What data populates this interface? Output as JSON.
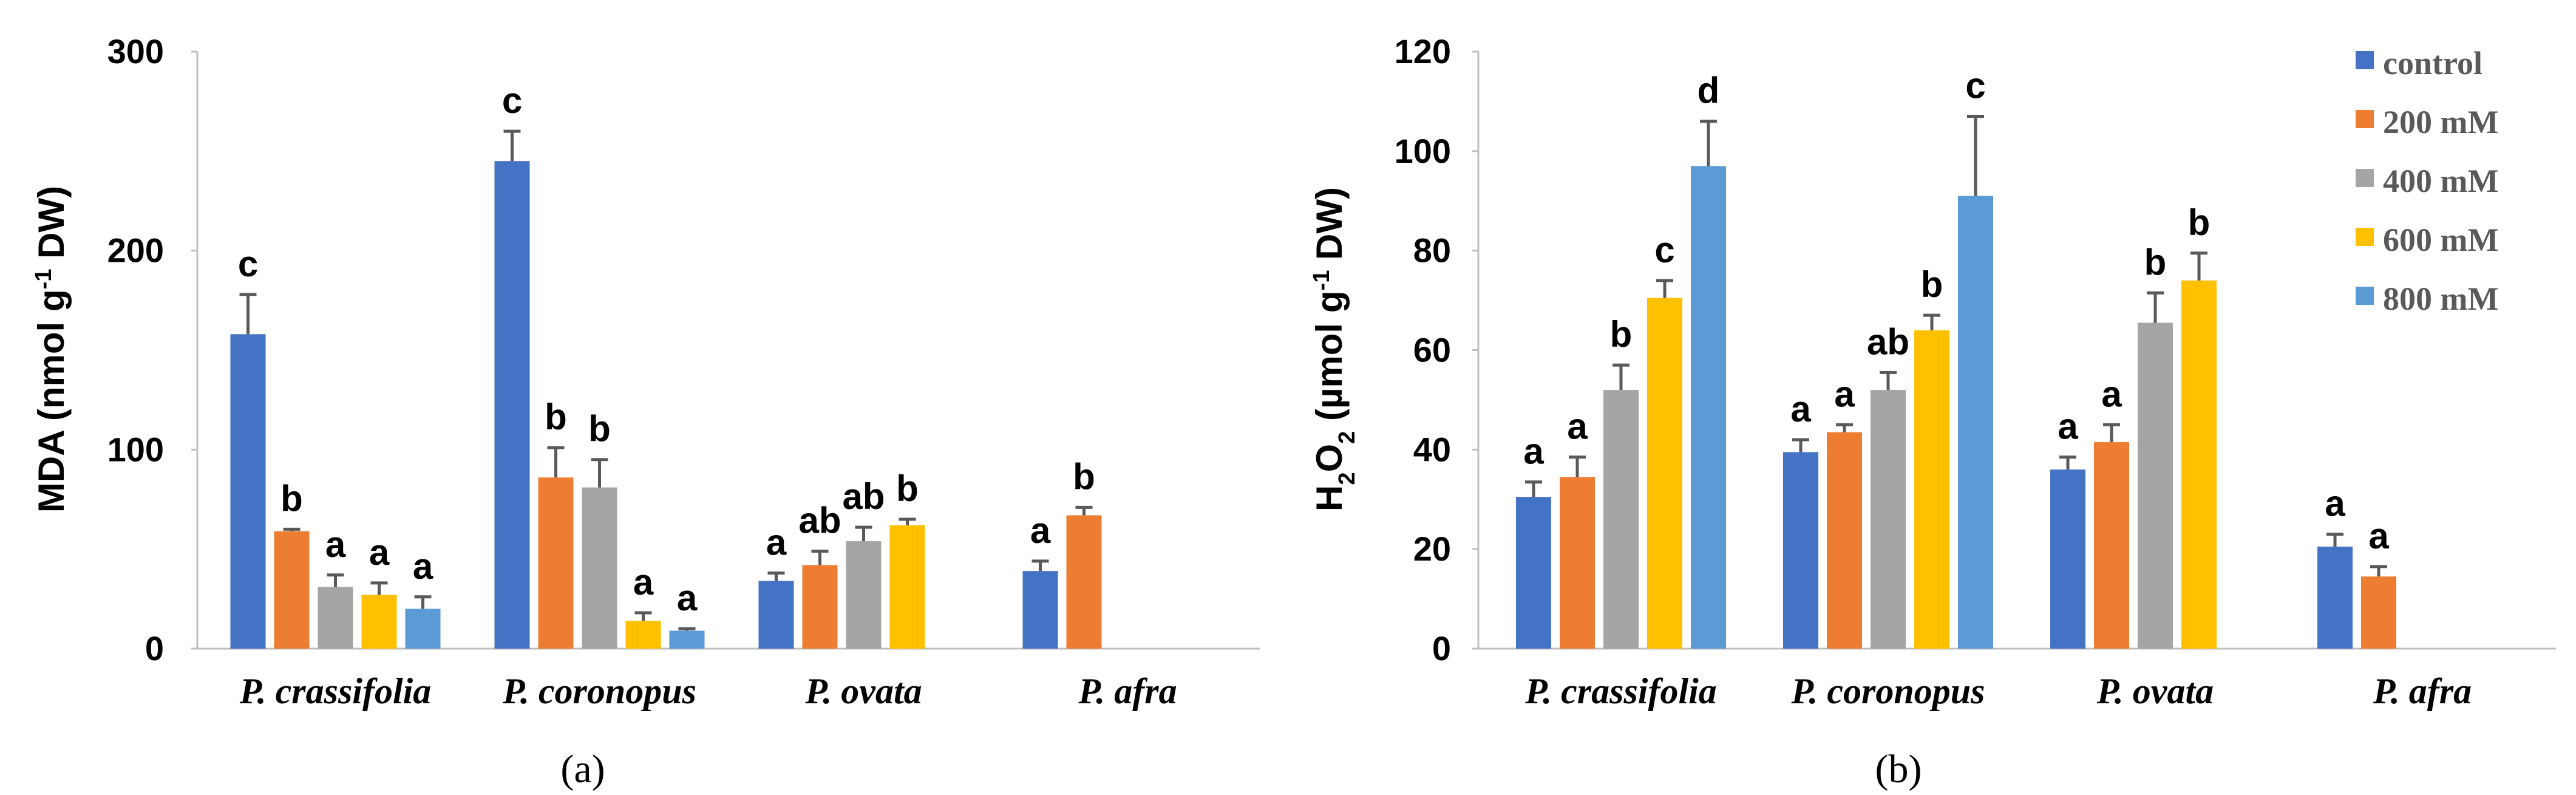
{
  "chart_data": [
    {
      "type": "bar",
      "panel_label": "(a)",
      "ylabel": "MDA (nmol g",
      "ylabel_sup": "-1",
      "ylabel_tail": " DW)",
      "ylim": [
        0,
        300
      ],
      "yticks": [
        "0",
        "100",
        "200",
        "300"
      ],
      "categories": [
        "P. crassifolia",
        "P. coronopus",
        "P. ovata",
        "P. afra"
      ],
      "series": [
        {
          "name": "control",
          "values": [
            158,
            245,
            34,
            39
          ],
          "errors": [
            20,
            15,
            4,
            5
          ],
          "letters": [
            "c",
            "c",
            "a",
            "a"
          ]
        },
        {
          "name": "200 mM",
          "values": [
            59,
            86,
            42,
            67
          ],
          "errors": [
            1,
            15,
            7,
            4
          ],
          "letters": [
            "b",
            "b",
            "ab",
            "b"
          ]
        },
        {
          "name": "400 mM",
          "values": [
            31,
            81,
            54,
            null
          ],
          "errors": [
            6,
            14,
            7,
            null
          ],
          "letters": [
            "a",
            "b",
            "ab",
            ""
          ]
        },
        {
          "name": "600 mM",
          "values": [
            27,
            14,
            62,
            null
          ],
          "errors": [
            6,
            4,
            3,
            null
          ],
          "letters": [
            "a",
            "a",
            "b",
            ""
          ]
        },
        {
          "name": "800 mM",
          "values": [
            20,
            9,
            null,
            null
          ],
          "errors": [
            6,
            1,
            null,
            null
          ],
          "letters": [
            "a",
            "a",
            "",
            ""
          ]
        }
      ]
    },
    {
      "type": "bar",
      "panel_label": "(b)",
      "ylabel": "H",
      "ylabel_sub1": "2",
      "ylabel_mid": "O",
      "ylabel_sub2": "2",
      "ylabel_rest": " (µmol g",
      "ylabel_sup": "-1",
      "ylabel_tail": " DW)",
      "ylim": [
        0,
        120
      ],
      "yticks": [
        "0",
        "20",
        "40",
        "60",
        "80",
        "100",
        "120"
      ],
      "categories": [
        "P. crassifolia",
        "P. coronopus",
        "P. ovata",
        "P. afra"
      ],
      "series": [
        {
          "name": "control",
          "values": [
            30.5,
            39.5,
            36,
            20.5
          ],
          "errors": [
            3,
            2.5,
            2.5,
            2.5
          ],
          "letters": [
            "a",
            "a",
            "a",
            "a"
          ]
        },
        {
          "name": "200 mM",
          "values": [
            34.5,
            43.5,
            41.5,
            14.5
          ],
          "errors": [
            4,
            1.5,
            3.5,
            2
          ],
          "letters": [
            "a",
            "a",
            "a",
            "a"
          ]
        },
        {
          "name": "400 mM",
          "values": [
            52,
            52,
            65.5,
            null
          ],
          "errors": [
            5,
            3.5,
            6,
            null
          ],
          "letters": [
            "b",
            "ab",
            "b",
            ""
          ]
        },
        {
          "name": "600 mM",
          "values": [
            70.5,
            64,
            74,
            null
          ],
          "errors": [
            3.5,
            3,
            5.5,
            null
          ],
          "letters": [
            "c",
            "b",
            "b",
            ""
          ]
        },
        {
          "name": "800 mM",
          "values": [
            97,
            91,
            null,
            null
          ],
          "errors": [
            9,
            16,
            null,
            null
          ],
          "letters": [
            "d",
            "c",
            "",
            ""
          ]
        }
      ]
    }
  ],
  "legend": [
    "control",
    "200 mM",
    "400 mM",
    "600 mM",
    "800 mM"
  ],
  "colors": {
    "control": "#4472c4",
    "200 mM": "#ed7d31",
    "400 mM": "#a5a5a5",
    "600 mM": "#ffc000",
    "800 mM": "#5b9bd5"
  }
}
